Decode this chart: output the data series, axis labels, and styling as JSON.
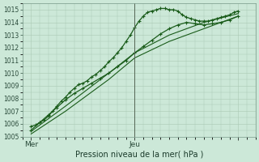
{
  "xlabel": "Pression niveau de la mer( hPa )",
  "bg_color": "#cce8d8",
  "grid_color": "#aac8b4",
  "line_color": "#1a5c1a",
  "vline_color": "#556655",
  "ylim": [
    1005,
    1015.5
  ],
  "xlim": [
    0,
    54
  ],
  "x_ticks": [
    2,
    26,
    50
  ],
  "x_tick_labels": [
    "Mer",
    "Jeu",
    ""
  ],
  "y_ticks": [
    1005,
    1006,
    1007,
    1008,
    1009,
    1010,
    1011,
    1012,
    1013,
    1014,
    1015
  ],
  "vline_x": 26,
  "series": [
    {
      "x": [
        2,
        3,
        4,
        5,
        6,
        7,
        8,
        9,
        10,
        11,
        12,
        13,
        14,
        15,
        16,
        17,
        18,
        19,
        20,
        21,
        22,
        23,
        24,
        25,
        26,
        27,
        28,
        29,
        30,
        31,
        32,
        33,
        34,
        35,
        36,
        37,
        38,
        39,
        40,
        41,
        42,
        43,
        44,
        45,
        46,
        47,
        48,
        49,
        50
      ],
      "y": [
        1005.8,
        1005.9,
        1006.1,
        1006.3,
        1006.6,
        1007.0,
        1007.4,
        1007.8,
        1008.1,
        1008.5,
        1008.8,
        1009.1,
        1009.2,
        1009.4,
        1009.7,
        1009.9,
        1010.2,
        1010.5,
        1010.9,
        1011.2,
        1011.6,
        1012.0,
        1012.5,
        1013.0,
        1013.6,
        1014.1,
        1014.5,
        1014.8,
        1014.9,
        1015.0,
        1015.1,
        1015.1,
        1015.0,
        1015.0,
        1014.9,
        1014.6,
        1014.4,
        1014.3,
        1014.2,
        1014.1,
        1014.1,
        1014.1,
        1014.2,
        1014.3,
        1014.4,
        1014.5,
        1014.6,
        1014.8,
        1014.9
      ],
      "marker": true,
      "linewidth": 0.9
    },
    {
      "x": [
        2,
        4,
        6,
        8,
        10,
        12,
        14,
        16,
        18,
        20,
        22,
        24,
        26,
        28,
        30,
        32,
        34,
        36,
        38,
        40,
        42,
        44,
        46,
        48,
        50
      ],
      "y": [
        1005.5,
        1006.1,
        1006.7,
        1007.3,
        1007.9,
        1008.4,
        1008.8,
        1009.2,
        1009.6,
        1010.0,
        1010.5,
        1011.0,
        1011.6,
        1012.1,
        1012.6,
        1013.1,
        1013.5,
        1013.8,
        1014.0,
        1013.9,
        1013.8,
        1013.9,
        1014.0,
        1014.2,
        1014.5
      ],
      "marker": true,
      "linewidth": 0.9
    },
    {
      "x": [
        2,
        10,
        20,
        26,
        34,
        42,
        50
      ],
      "y": [
        1005.2,
        1007.0,
        1009.5,
        1011.2,
        1012.5,
        1013.5,
        1014.5
      ],
      "marker": false,
      "linewidth": 0.8
    },
    {
      "x": [
        2,
        10,
        20,
        26,
        34,
        42,
        50
      ],
      "y": [
        1005.4,
        1007.4,
        1010.0,
        1011.6,
        1013.0,
        1014.0,
        1014.7
      ],
      "marker": false,
      "linewidth": 0.8
    }
  ]
}
